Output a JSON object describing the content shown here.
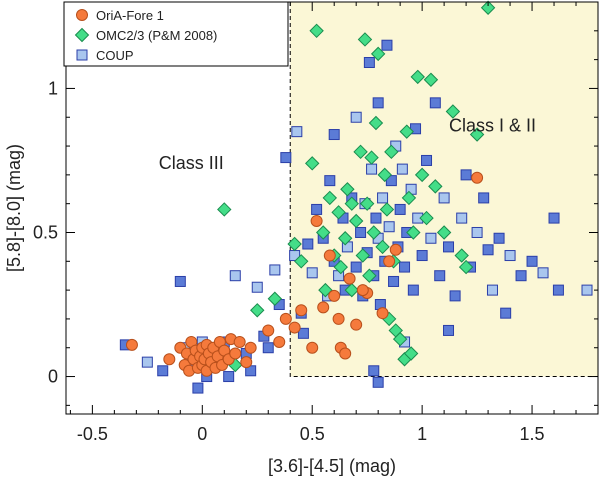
{
  "chart_data": {
    "type": "scatter",
    "xlabel": "[3.6]-[4.5]  (mag)",
    "ylabel": "[5.8]-[8.0] (mag)",
    "xlim": [
      -0.62,
      1.8
    ],
    "ylim": [
      -0.13,
      1.3
    ],
    "xticks": [
      -0.5,
      0,
      0.5,
      1,
      1.5
    ],
    "yticks": [
      0,
      0.5,
      1
    ],
    "xtick_labels": [
      "-0.5",
      "0",
      "0.5",
      "1",
      "1.5"
    ],
    "ytick_labels": [
      "0",
      "0.5",
      "1"
    ],
    "legend_position": "top-left",
    "region": {
      "x_min": 0.4,
      "y_min": 0.0,
      "color": "#fbf7d6"
    },
    "annotations": [
      {
        "text": "Class III",
        "x": -0.05,
        "y": 0.72
      },
      {
        "text": "Class I & II",
        "x": 1.32,
        "y": 0.85
      }
    ],
    "series": [
      {
        "name": "COUP",
        "marker": "square",
        "color": "#5b7bd6",
        "color_light": "#a9c6ee",
        "points": [
          [
            -0.35,
            0.11
          ],
          [
            -0.25,
            0.05
          ],
          [
            -0.18,
            0.02
          ],
          [
            -0.1,
            0.33
          ],
          [
            -0.08,
            0.1
          ],
          [
            -0.05,
            0.04
          ],
          [
            -0.02,
            -0.04
          ],
          [
            0.0,
            0.12
          ],
          [
            0.02,
            0.0
          ],
          [
            0.05,
            0.08
          ],
          [
            0.08,
            0.04
          ],
          [
            0.1,
            0.12
          ],
          [
            0.12,
            0.0
          ],
          [
            0.15,
            0.35
          ],
          [
            0.2,
            0.08
          ],
          [
            0.22,
            0.02
          ],
          [
            0.25,
            0.31
          ],
          [
            0.28,
            0.14
          ],
          [
            0.3,
            0.1
          ],
          [
            0.33,
            0.37
          ],
          [
            0.35,
            0.25
          ],
          [
            0.38,
            0.76
          ],
          [
            0.42,
            0.42
          ],
          [
            0.45,
            0.22
          ],
          [
            0.48,
            0.46
          ],
          [
            0.5,
            0.36
          ],
          [
            0.52,
            0.58
          ],
          [
            0.55,
            0.48
          ],
          [
            0.57,
            0.28
          ],
          [
            0.58,
            0.68
          ],
          [
            0.6,
            0.4
          ],
          [
            0.62,
            0.35
          ],
          [
            0.64,
            0.55
          ],
          [
            0.65,
            0.3
          ],
          [
            0.66,
            0.45
          ],
          [
            0.68,
            0.62
          ],
          [
            0.7,
            0.38
          ],
          [
            0.7,
            0.9
          ],
          [
            0.72,
            0.5
          ],
          [
            0.73,
            0.28
          ],
          [
            0.74,
            0.6
          ],
          [
            0.75,
            0.43
          ],
          [
            0.76,
            1.09
          ],
          [
            0.77,
            0.72
          ],
          [
            0.78,
            0.35
          ],
          [
            0.79,
            0.55
          ],
          [
            0.8,
            0.48
          ],
          [
            0.8,
            0.95
          ],
          [
            0.81,
            0.25
          ],
          [
            0.82,
            0.62
          ],
          [
            0.83,
            0.4
          ],
          [
            0.84,
            1.15
          ],
          [
            0.85,
            0.52
          ],
          [
            0.86,
            0.68
          ],
          [
            0.87,
            0.33
          ],
          [
            0.88,
            0.8
          ],
          [
            0.89,
            0.45
          ],
          [
            0.9,
            0.58
          ],
          [
            0.91,
            0.72
          ],
          [
            0.92,
            0.38
          ],
          [
            0.93,
            0.5
          ],
          [
            0.95,
            0.65
          ],
          [
            0.96,
            0.3
          ],
          [
            0.97,
            0.86
          ],
          [
            0.98,
            0.55
          ],
          [
            1.0,
            0.42
          ],
          [
            1.02,
            0.75
          ],
          [
            1.04,
            0.48
          ],
          [
            1.06,
            0.95
          ],
          [
            1.08,
            0.35
          ],
          [
            1.1,
            0.62
          ],
          [
            1.12,
            0.45
          ],
          [
            1.15,
            0.28
          ],
          [
            1.18,
            0.55
          ],
          [
            1.2,
            0.7
          ],
          [
            1.22,
            0.38
          ],
          [
            1.25,
            0.5
          ],
          [
            1.28,
            0.62
          ],
          [
            1.3,
            0.44
          ],
          [
            1.32,
            0.3
          ],
          [
            1.35,
            0.48
          ],
          [
            1.38,
            0.22
          ],
          [
            1.4,
            0.42
          ],
          [
            1.45,
            0.35
          ],
          [
            1.5,
            0.4
          ],
          [
            1.55,
            0.36
          ],
          [
            1.6,
            0.55
          ],
          [
            1.62,
            0.3
          ],
          [
            1.75,
            0.3
          ],
          [
            0.8,
            -0.02
          ],
          [
            0.78,
            0.02
          ],
          [
            0.92,
            0.12
          ],
          [
            1.12,
            0.16
          ],
          [
            0.46,
            0.15
          ],
          [
            0.43,
            0.85
          ],
          [
            0.6,
            0.84
          ]
        ]
      },
      {
        "name": "OMC2/3 (P&M 2008)",
        "marker": "diamond",
        "color": "#44dd88",
        "points": [
          [
            0.1,
            0.58
          ],
          [
            0.15,
            0.04
          ],
          [
            0.25,
            0.23
          ],
          [
            0.33,
            0.27
          ],
          [
            0.42,
            0.46
          ],
          [
            0.45,
            0.4
          ],
          [
            0.5,
            0.74
          ],
          [
            0.52,
            1.2
          ],
          [
            0.55,
            0.5
          ],
          [
            0.58,
            0.62
          ],
          [
            0.6,
            0.42
          ],
          [
            0.62,
            0.57
          ],
          [
            0.63,
            0.38
          ],
          [
            0.65,
            0.48
          ],
          [
            0.66,
            0.65
          ],
          [
            0.68,
            0.3
          ],
          [
            0.7,
            0.54
          ],
          [
            0.72,
            0.78
          ],
          [
            0.73,
            0.42
          ],
          [
            0.74,
            1.17
          ],
          [
            0.75,
            0.6
          ],
          [
            0.76,
            0.35
          ],
          [
            0.78,
            0.5
          ],
          [
            0.79,
            0.88
          ],
          [
            0.8,
            1.12
          ],
          [
            0.82,
            0.45
          ],
          [
            0.83,
            0.7
          ],
          [
            0.84,
            0.58
          ],
          [
            0.85,
            0.2
          ],
          [
            0.86,
            0.78
          ],
          [
            0.87,
            0.4
          ],
          [
            0.88,
            0.16
          ],
          [
            0.9,
            0.13
          ],
          [
            0.92,
            0.06
          ],
          [
            0.93,
            0.85
          ],
          [
            0.94,
            0.62
          ],
          [
            0.95,
            0.08
          ],
          [
            0.96,
            0.5
          ],
          [
            0.98,
            1.04
          ],
          [
            1.0,
            0.7
          ],
          [
            1.02,
            0.55
          ],
          [
            1.04,
            1.03
          ],
          [
            1.06,
            0.66
          ],
          [
            1.1,
            0.5
          ],
          [
            1.14,
            0.92
          ],
          [
            1.18,
            0.42
          ],
          [
            1.2,
            0.38
          ],
          [
            1.25,
            0.84
          ],
          [
            1.3,
            1.28
          ],
          [
            0.56,
            0.3
          ],
          [
            0.68,
            0.6
          ],
          [
            0.77,
            0.76
          ]
        ]
      },
      {
        "name": "OriA-Fore 1",
        "marker": "circle",
        "color": "#f57a3c",
        "points": [
          [
            -0.32,
            0.11
          ],
          [
            -0.15,
            0.06
          ],
          [
            -0.1,
            0.1
          ],
          [
            -0.08,
            0.04
          ],
          [
            -0.07,
            0.08
          ],
          [
            -0.06,
            0.02
          ],
          [
            -0.05,
            0.12
          ],
          [
            -0.04,
            0.06
          ],
          [
            -0.03,
            0.09
          ],
          [
            -0.02,
            0.03
          ],
          [
            -0.01,
            0.07
          ],
          [
            0.0,
            0.1
          ],
          [
            0.0,
            0.04
          ],
          [
            0.01,
            0.06
          ],
          [
            0.02,
            0.11
          ],
          [
            0.02,
            0.02
          ],
          [
            0.03,
            0.08
          ],
          [
            0.04,
            0.05
          ],
          [
            0.05,
            0.1
          ],
          [
            0.06,
            0.03
          ],
          [
            0.07,
            0.07
          ],
          [
            0.08,
            0.12
          ],
          [
            0.09,
            0.04
          ],
          [
            0.1,
            0.09
          ],
          [
            0.12,
            0.06
          ],
          [
            0.13,
            0.13
          ],
          [
            0.15,
            0.08
          ],
          [
            0.17,
            0.12
          ],
          [
            0.2,
            0.05
          ],
          [
            0.22,
            0.1
          ],
          [
            0.3,
            0.16
          ],
          [
            0.35,
            0.12
          ],
          [
            0.42,
            0.17
          ],
          [
            0.5,
            0.1
          ],
          [
            0.52,
            0.54
          ],
          [
            0.55,
            0.24
          ],
          [
            0.58,
            0.42
          ],
          [
            0.6,
            0.28
          ],
          [
            0.62,
            0.2
          ],
          [
            0.63,
            0.1
          ],
          [
            0.65,
            0.08
          ],
          [
            0.67,
            0.34
          ],
          [
            0.7,
            0.18
          ],
          [
            0.75,
            0.29
          ],
          [
            0.82,
            0.22
          ],
          [
            0.85,
            0.4
          ],
          [
            0.88,
            0.44
          ],
          [
            1.25,
            0.69
          ],
          [
            0.45,
            0.23
          ],
          [
            0.73,
            0.3
          ],
          [
            0.38,
            0.2
          ]
        ]
      }
    ]
  }
}
